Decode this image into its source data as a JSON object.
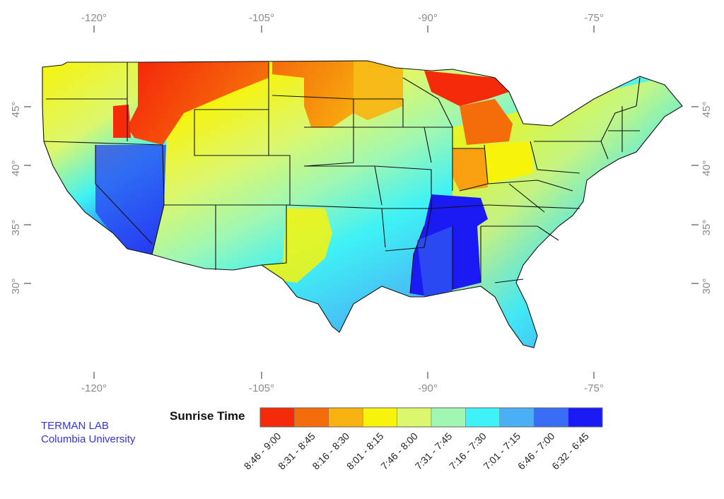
{
  "credit": {
    "line1": "TERMAN LAB",
    "line2": "Columbia University"
  },
  "axes": {
    "longitude_ticks": [
      "-120°",
      "-105°",
      "-90°",
      "-75°"
    ],
    "latitude_ticks": [
      "45°",
      "40°",
      "35°",
      "30°"
    ]
  },
  "legend": {
    "title": "Sunrise Time",
    "bins": [
      {
        "label": "8:46 - 9:00",
        "color": "#f52a0a"
      },
      {
        "label": "8:31 - 8:45",
        "color": "#f56d0a"
      },
      {
        "label": "8:16 - 8:30",
        "color": "#f8b20f"
      },
      {
        "label": "8:01 - 8:15",
        "color": "#f7f30a"
      },
      {
        "label": "7:46 - 8:00",
        "color": "#dcf76e"
      },
      {
        "label": "7:31 - 7:45",
        "color": "#9ff7b2"
      },
      {
        "label": "7:16 - 7:30",
        "color": "#3ff2f5"
      },
      {
        "label": "7:01 - 7:15",
        "color": "#4aaff5"
      },
      {
        "label": "6:46 - 7:00",
        "color": "#3a6df5"
      },
      {
        "label": "6:32 - 6:45",
        "color": "#1a1af5"
      }
    ]
  }
}
